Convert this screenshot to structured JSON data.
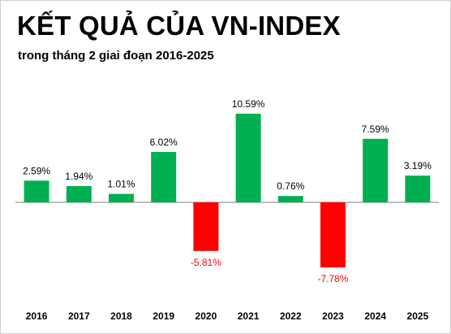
{
  "title": "KẾT QUẢ CỦA VN-INDEX",
  "subtitle": "trong tháng 2 giai đoạn 2016-2025",
  "colors": {
    "positive": "#00b050",
    "negative": "#ff0000",
    "positive_label": "#000000",
    "negative_label": "#ff0000",
    "axis": "#7f7f7f"
  },
  "chart_data": {
    "type": "bar",
    "title": "KẾT QUẢ CỦA VN-INDEX",
    "subtitle": "trong tháng 2 giai đoạn 2016-2025",
    "categories": [
      "2016",
      "2017",
      "2018",
      "2019",
      "2020",
      "2021",
      "2022",
      "2023",
      "2024",
      "2025"
    ],
    "values": [
      2.59,
      1.94,
      1.01,
      6.02,
      -5.81,
      10.59,
      0.76,
      -7.78,
      7.59,
      3.19
    ],
    "data_labels": [
      "2.59%",
      "1.94%",
      "1.01%",
      "6.02%",
      "-5.81%",
      "10.59%",
      "0.76%",
      "-7.78%",
      "7.59%",
      "3.19%"
    ],
    "unit": "%",
    "ylim": [
      -10,
      12
    ],
    "grid": false,
    "legend": "none",
    "xlabel": "",
    "ylabel": ""
  }
}
